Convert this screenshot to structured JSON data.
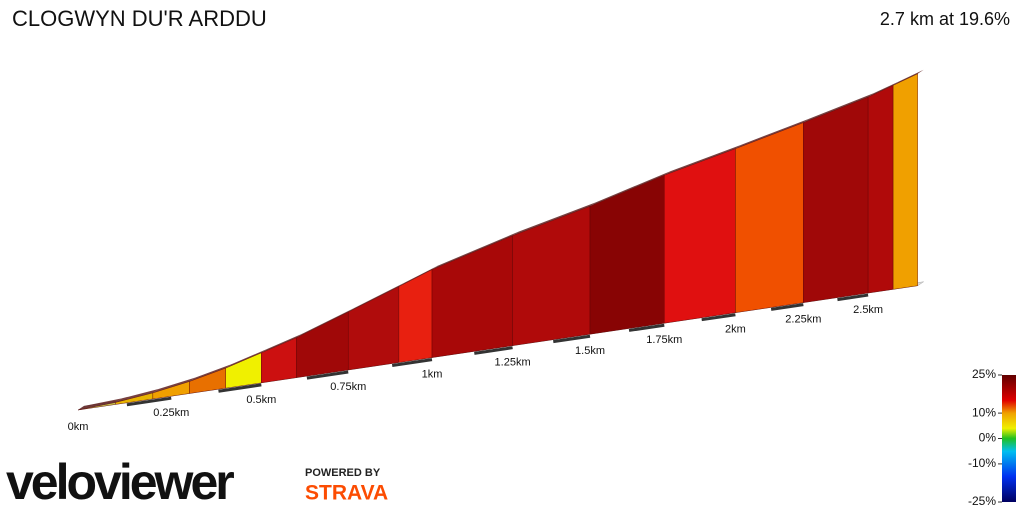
{
  "chart_data": {
    "type": "profile",
    "title": "CLOGWYN DU'R ARDDU",
    "subtitle": "2.7 km at 19.6%",
    "x": [
      0,
      0.1,
      0.2,
      0.3,
      0.4,
      0.5,
      0.6,
      0.75,
      0.9,
      1,
      1.25,
      1.5,
      1.75,
      2,
      2.25,
      2.5,
      2.6,
      2.7
    ],
    "values": [
      0,
      5,
      15,
      30,
      50,
      75,
      100,
      145,
      190,
      220,
      275,
      320,
      370,
      410,
      450,
      490,
      510,
      530
    ],
    "segment_colors": [
      "#c8c850",
      "#e8b400",
      "#f0a000",
      "#e87000",
      "#f0f000",
      "#cc1010",
      "#a00808",
      "#b00c0c",
      "#e82010",
      "#a80808",
      "#b00a0a",
      "#880404",
      "#e01010",
      "#f05000",
      "#a00808",
      "#b00a0a",
      "#f0a000"
    ],
    "xlim": [
      0,
      2.7
    ],
    "xticks": [
      {
        "value": 0,
        "label": "0km"
      },
      {
        "value": 0.25,
        "label": "0.25km"
      },
      {
        "value": 0.5,
        "label": "0.5km"
      },
      {
        "value": 0.75,
        "label": "0.75km"
      },
      {
        "value": 1,
        "label": "1km"
      },
      {
        "value": 1.25,
        "label": "1.25km"
      },
      {
        "value": 1.5,
        "label": "1.5km"
      },
      {
        "value": 1.75,
        "label": "1.75km"
      },
      {
        "value": 2,
        "label": "2km"
      },
      {
        "value": 2.25,
        "label": "2.25km"
      },
      {
        "value": 2.5,
        "label": "2.5km"
      }
    ],
    "color_scale": {
      "lim": [
        -25,
        25
      ],
      "ticks": [
        {
          "value": 25,
          "label": "25%"
        },
        {
          "value": 10,
          "label": "10%"
        },
        {
          "value": 0,
          "label": "0%"
        },
        {
          "value": -10,
          "label": "-10%"
        },
        {
          "value": -25,
          "label": "-25%"
        }
      ]
    },
    "logo": "veloviewer",
    "powered_by": "POWERED BY",
    "strava": "STRAVA"
  }
}
